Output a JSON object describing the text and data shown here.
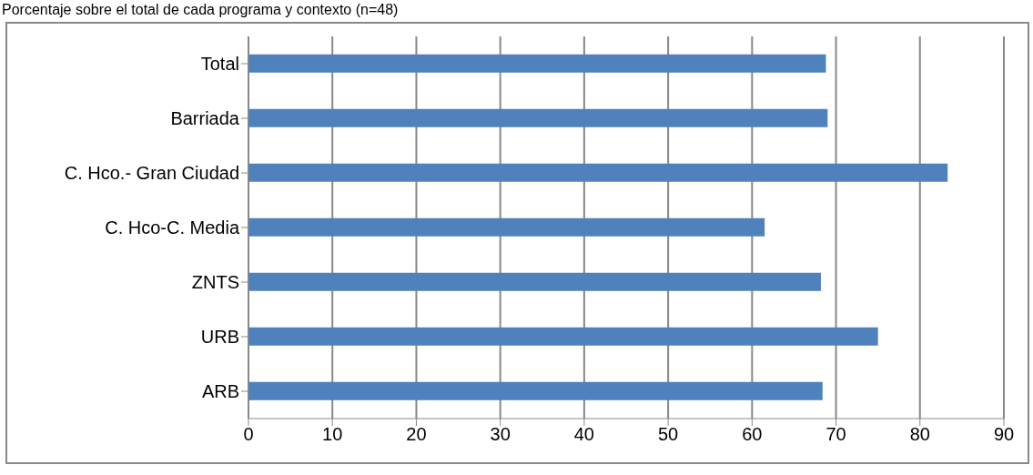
{
  "chart_data": {
    "type": "bar",
    "orientation": "horizontal",
    "title": "Porcentaje sobre el total de cada programa y contexto (n=48)",
    "categories": [
      "Total",
      "Barriada",
      "C. Hco.- Gran Ciudad",
      "C. Hco-C. Media",
      "ZNTS",
      "URB",
      "ARB"
    ],
    "values": [
      68.8,
      69,
      83.3,
      61.5,
      68.2,
      75,
      68.4
    ],
    "color": "#4f81bd",
    "xlim": [
      0,
      90
    ],
    "xticks": [
      0,
      10,
      20,
      30,
      40,
      50,
      60,
      70,
      80,
      90
    ],
    "grid": "x"
  }
}
